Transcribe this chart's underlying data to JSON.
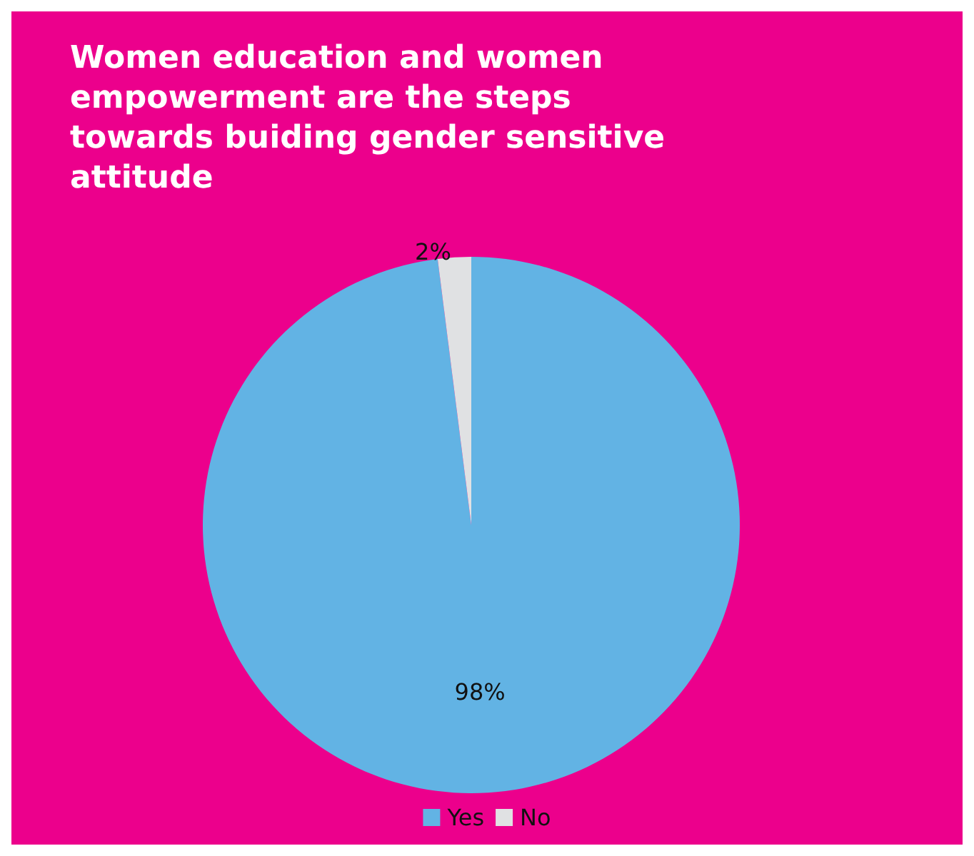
{
  "chart_data": {
    "type": "pie",
    "title": "Women education and women empowerment are the steps towards buiding gender sensitive attitude",
    "categories": [
      "Yes",
      "No"
    ],
    "values": [
      98,
      2
    ],
    "colors": [
      "#62b3e4",
      "#e0e1e3"
    ],
    "value_labels": [
      "98%",
      "2%"
    ],
    "legend": "bottom"
  }
}
